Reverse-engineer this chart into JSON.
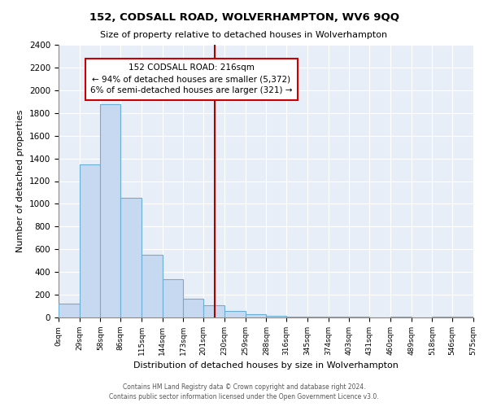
{
  "title": "152, CODSALL ROAD, WOLVERHAMPTON, WV6 9QQ",
  "subtitle": "Size of property relative to detached houses in Wolverhampton",
  "xlabel": "Distribution of detached houses by size in Wolverhampton",
  "ylabel": "Number of detached properties",
  "footer_lines": [
    "Contains HM Land Registry data © Crown copyright and database right 2024.",
    "Contains public sector information licensed under the Open Government Licence v3.0."
  ],
  "bin_edges": [
    0,
    29,
    58,
    86,
    115,
    144,
    173,
    201,
    230,
    259,
    288,
    316,
    345,
    374,
    403,
    431,
    460,
    489,
    518,
    546,
    575
  ],
  "bin_labels": [
    "0sqm",
    "29sqm",
    "58sqm",
    "86sqm",
    "115sqm",
    "144sqm",
    "173sqm",
    "201sqm",
    "230sqm",
    "259sqm",
    "288sqm",
    "316sqm",
    "345sqm",
    "374sqm",
    "403sqm",
    "431sqm",
    "460sqm",
    "489sqm",
    "518sqm",
    "546sqm",
    "575sqm"
  ],
  "bar_heights": [
    125,
    1350,
    1880,
    1050,
    550,
    340,
    165,
    110,
    60,
    30,
    15,
    10,
    5,
    5,
    5,
    0,
    5,
    0,
    5,
    5,
    0
  ],
  "bar_color": "#c6d9f0",
  "bar_edge_color": "#6baed6",
  "property_line_x": 216,
  "property_line_color": "#aa0000",
  "annotation_line1": "152 CODSALL ROAD: 216sqm",
  "annotation_line2": "← 94% of detached houses are smaller (5,372)",
  "annotation_line3": "6% of semi-detached houses are larger (321) →",
  "annotation_box_color": "#ffffff",
  "annotation_box_edge": "#cc0000",
  "ylim": [
    0,
    2400
  ],
  "yticks": [
    0,
    200,
    400,
    600,
    800,
    1000,
    1200,
    1400,
    1600,
    1800,
    2000,
    2200,
    2400
  ],
  "background_color": "#ffffff",
  "plot_background": "#e8eef7",
  "grid_color": "#ffffff"
}
